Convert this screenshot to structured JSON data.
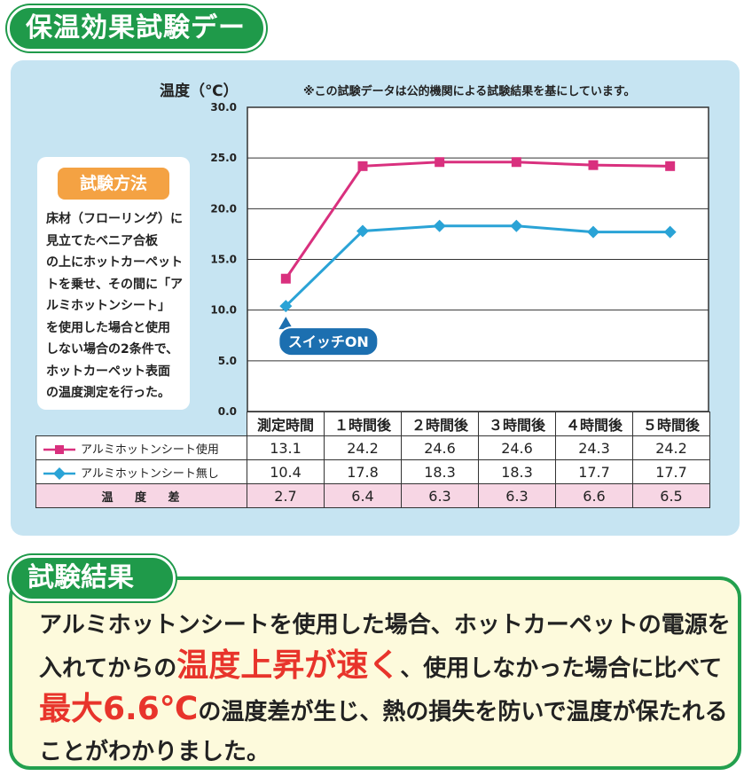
{
  "header": {
    "title": "保温効果試験データ"
  },
  "note": "※この試験データは公的機関による試験結果を基にしています。",
  "method": {
    "title": "試験方法",
    "lines": [
      "床材（フローリング）に",
      "見立てたベニア合板",
      "の上にホットカーペット",
      "トを乗せ、その間に「ア",
      "ルミホットンシート」",
      "を使用した場合と使用",
      "しない場合の2条件で、",
      "ホットカーペット表面",
      "の温度測定を行った。"
    ]
  },
  "callout": "スイッチON",
  "chart_data": {
    "type": "line",
    "ylabel": "温度（℃）",
    "ylim": [
      0,
      30
    ],
    "yticks": [
      "0.0",
      "5.0",
      "10.0",
      "15.0",
      "20.0",
      "25.0",
      "30.0"
    ],
    "categories": [
      "測定時間",
      "１時間後",
      "２時間後",
      "３時間後",
      "４時間後",
      "５時間後"
    ],
    "grid": true,
    "series": [
      {
        "name": "アルミホットンシート使用",
        "color": "#d9307e",
        "marker": "square",
        "values": [
          13.1,
          24.2,
          24.6,
          24.6,
          24.3,
          24.2
        ],
        "labels": [
          "13.1",
          "24.2",
          "24.6",
          "24.6",
          "24.3",
          "24.2"
        ]
      },
      {
        "name": "アルミホットンシート無し",
        "color": "#2aa3d6",
        "marker": "diamond",
        "values": [
          10.4,
          17.8,
          18.3,
          18.3,
          17.7,
          17.7
        ],
        "labels": [
          "10.4",
          "17.8",
          "18.3",
          "18.3",
          "17.7",
          "17.7"
        ]
      }
    ],
    "difference": {
      "name": "温 度 差",
      "values": [
        "2.7",
        "6.4",
        "6.3",
        "6.3",
        "6.6",
        "6.5"
      ]
    }
  },
  "result": {
    "title": "試験結果",
    "part1": "アルミホットンシートを使用した場合、ホットカーペットの電源を入れてからの",
    "emph1": "温度上昇が速く",
    "part2": "、使用しなかった場合に比べて",
    "emph2": "最大6.6℃",
    "part3": "の温度差が生じ、熱の損失を防いで温度が保たれることがわかりました。"
  }
}
